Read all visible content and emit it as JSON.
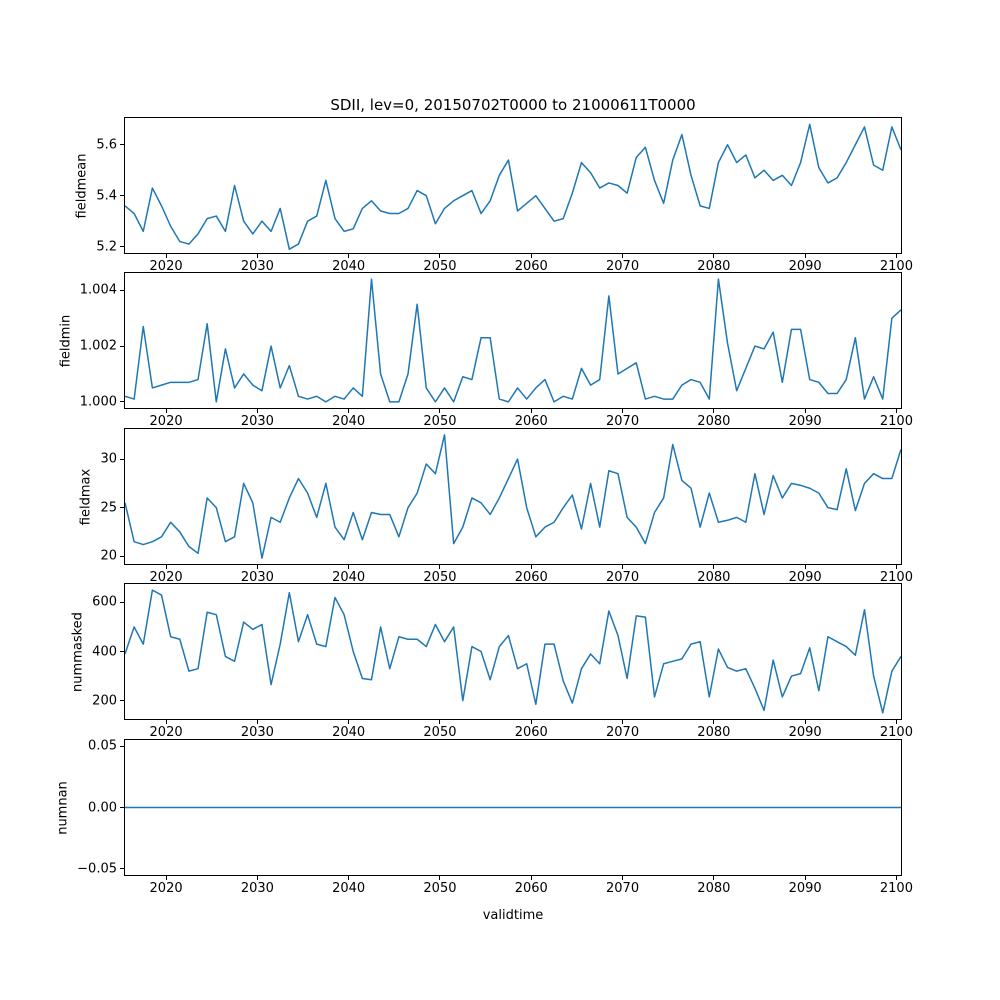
{
  "figure": {
    "title": "SDII, lev=0, 20150702T0000 to 21000611T0000",
    "xlabel": "validtime",
    "line_color": "#1f77b4",
    "background_color": "#ffffff",
    "text_color": "#000000"
  },
  "chart_data": [
    {
      "type": "line",
      "name": "fieldmean",
      "ylabel": "fieldmean",
      "x_start": 2015.5,
      "x_step": 1,
      "xlim": [
        2015.5,
        2100.5
      ],
      "ylim": [
        5.175,
        5.705
      ],
      "grid": false,
      "xticks": [
        2020,
        2030,
        2040,
        2050,
        2060,
        2070,
        2080,
        2090,
        2100
      ],
      "yticks": [
        5.2,
        5.4,
        5.6
      ],
      "ytick_labels": [
        "5.2",
        "5.4",
        "5.6"
      ],
      "values": [
        5.36,
        5.33,
        5.26,
        5.43,
        5.36,
        5.28,
        5.22,
        5.21,
        5.25,
        5.31,
        5.32,
        5.26,
        5.44,
        5.3,
        5.25,
        5.3,
        5.26,
        5.35,
        5.19,
        5.21,
        5.3,
        5.32,
        5.46,
        5.31,
        5.26,
        5.27,
        5.35,
        5.38,
        5.34,
        5.33,
        5.33,
        5.35,
        5.42,
        5.4,
        5.29,
        5.35,
        5.38,
        5.4,
        5.42,
        5.33,
        5.38,
        5.48,
        5.54,
        5.34,
        5.37,
        5.4,
        5.35,
        5.3,
        5.31,
        5.41,
        5.53,
        5.49,
        5.43,
        5.45,
        5.44,
        5.41,
        5.55,
        5.59,
        5.46,
        5.37,
        5.54,
        5.64,
        5.48,
        5.36,
        5.35,
        5.53,
        5.6,
        5.53,
        5.56,
        5.47,
        5.5,
        5.46,
        5.48,
        5.44,
        5.53,
        5.68,
        5.51,
        5.45,
        5.47,
        5.53,
        5.6,
        5.67,
        5.52,
        5.5,
        5.67,
        5.58
      ]
    },
    {
      "type": "line",
      "name": "fieldmin",
      "ylabel": "fieldmin",
      "x_start": 2015.5,
      "x_step": 1,
      "xlim": [
        2015.5,
        2100.5
      ],
      "ylim": [
        0.99978,
        1.00462
      ],
      "grid": false,
      "xticks": [
        2020,
        2030,
        2040,
        2050,
        2060,
        2070,
        2080,
        2090,
        2100
      ],
      "yticks": [
        1.0,
        1.002,
        1.004
      ],
      "ytick_labels": [
        "1.000",
        "1.002",
        "1.004"
      ],
      "values": [
        1.0002,
        1.0001,
        1.0027,
        1.0005,
        1.0006,
        1.0007,
        1.0007,
        1.0007,
        1.0008,
        1.0028,
        1.0,
        1.0019,
        1.0005,
        1.001,
        1.0006,
        1.0004,
        1.002,
        1.0005,
        1.0013,
        1.0002,
        1.0001,
        1.0002,
        1.0,
        1.0002,
        1.0001,
        1.0005,
        1.0002,
        1.0044,
        1.001,
        1.0,
        1.0,
        1.001,
        1.0035,
        1.0005,
        1.0,
        1.0005,
        1.0,
        1.0009,
        1.0008,
        1.0023,
        1.0023,
        1.0001,
        1.0,
        1.0005,
        1.0001,
        1.0005,
        1.0008,
        1.0,
        1.0002,
        1.0001,
        1.0012,
        1.0006,
        1.0008,
        1.0038,
        1.001,
        1.0012,
        1.0014,
        1.0001,
        1.0002,
        1.0001,
        1.0001,
        1.0006,
        1.0008,
        1.0007,
        1.0001,
        1.0044,
        1.0021,
        1.0004,
        1.0012,
        1.002,
        1.0019,
        1.0025,
        1.0007,
        1.0026,
        1.0026,
        1.0008,
        1.0007,
        1.0003,
        1.0003,
        1.0008,
        1.0023,
        1.0001,
        1.0009,
        1.0001,
        1.003,
        1.0033
      ]
    },
    {
      "type": "line",
      "name": "fieldmax",
      "ylabel": "fieldmax",
      "x_start": 2015.5,
      "x_step": 1,
      "xlim": [
        2015.5,
        2100.5
      ],
      "ylim": [
        19.2,
        33.1
      ],
      "grid": false,
      "xticks": [
        2020,
        2030,
        2040,
        2050,
        2060,
        2070,
        2080,
        2090,
        2100
      ],
      "yticks": [
        20,
        25,
        30
      ],
      "ytick_labels": [
        "20",
        "25",
        "30"
      ],
      "values": [
        25.5,
        21.5,
        21.2,
        21.5,
        22.0,
        23.5,
        22.5,
        21.0,
        20.3,
        26.0,
        25.0,
        21.5,
        22.0,
        27.5,
        25.5,
        19.8,
        24.0,
        23.5,
        26.0,
        28.0,
        26.5,
        24.0,
        27.5,
        23.0,
        21.7,
        24.5,
        21.7,
        24.5,
        24.3,
        24.3,
        22.0,
        25.0,
        26.5,
        29.5,
        28.5,
        32.5,
        21.3,
        23.0,
        26.0,
        25.5,
        24.3,
        26.0,
        28.0,
        30.0,
        25.0,
        22.0,
        23.0,
        23.5,
        25.0,
        26.3,
        22.8,
        27.5,
        23.0,
        28.8,
        28.5,
        24.0,
        23.0,
        21.3,
        24.5,
        26.0,
        31.5,
        27.8,
        27.0,
        23.0,
        26.5,
        23.5,
        23.7,
        24.0,
        23.5,
        28.5,
        24.3,
        28.3,
        26.0,
        27.5,
        27.3,
        27.0,
        26.5,
        25.0,
        24.8,
        29.0,
        24.7,
        27.5,
        28.5,
        28.0,
        28.0,
        31.0
      ]
    },
    {
      "type": "line",
      "name": "nummasked",
      "ylabel": "nummasked",
      "x_start": 2015.5,
      "x_step": 1,
      "xlim": [
        2015.5,
        2100.5
      ],
      "ylim": [
        125,
        675
      ],
      "grid": false,
      "xticks": [
        2020,
        2030,
        2040,
        2050,
        2060,
        2070,
        2080,
        2090,
        2100
      ],
      "yticks": [
        200,
        400,
        600
      ],
      "ytick_labels": [
        "200",
        "400",
        "600"
      ],
      "values": [
        390,
        500,
        430,
        650,
        630,
        460,
        450,
        320,
        330,
        560,
        550,
        380,
        360,
        520,
        490,
        510,
        265,
        430,
        640,
        440,
        550,
        430,
        420,
        620,
        550,
        400,
        290,
        285,
        500,
        330,
        460,
        450,
        450,
        420,
        510,
        440,
        500,
        200,
        420,
        400,
        285,
        420,
        465,
        330,
        350,
        185,
        430,
        430,
        280,
        190,
        330,
        390,
        350,
        565,
        465,
        290,
        545,
        540,
        215,
        350,
        360,
        370,
        430,
        440,
        215,
        410,
        335,
        320,
        330,
        250,
        160,
        365,
        215,
        300,
        310,
        415,
        240,
        460,
        440,
        420,
        385,
        570,
        300,
        150,
        320,
        380
      ]
    },
    {
      "type": "line",
      "name": "numnan",
      "ylabel": "numnan",
      "x_start": 2015.5,
      "x_step": 1,
      "xlim": [
        2015.5,
        2100.5
      ],
      "ylim": [
        -0.055,
        0.055
      ],
      "grid": false,
      "xticks": [
        2020,
        2030,
        2040,
        2050,
        2060,
        2070,
        2080,
        2090,
        2100
      ],
      "yticks": [
        -0.05,
        0.0,
        0.05
      ],
      "ytick_labels": [
        "−0.05",
        "0.00",
        "0.05"
      ],
      "values": [
        0,
        0,
        0,
        0,
        0,
        0,
        0,
        0,
        0,
        0,
        0,
        0,
        0,
        0,
        0,
        0,
        0,
        0,
        0,
        0,
        0,
        0,
        0,
        0,
        0,
        0,
        0,
        0,
        0,
        0,
        0,
        0,
        0,
        0,
        0,
        0,
        0,
        0,
        0,
        0,
        0,
        0,
        0,
        0,
        0,
        0,
        0,
        0,
        0,
        0,
        0,
        0,
        0,
        0,
        0,
        0,
        0,
        0,
        0,
        0,
        0,
        0,
        0,
        0,
        0,
        0,
        0,
        0,
        0,
        0,
        0,
        0,
        0,
        0,
        0,
        0,
        0,
        0,
        0,
        0,
        0,
        0,
        0,
        0,
        0,
        0
      ]
    }
  ]
}
